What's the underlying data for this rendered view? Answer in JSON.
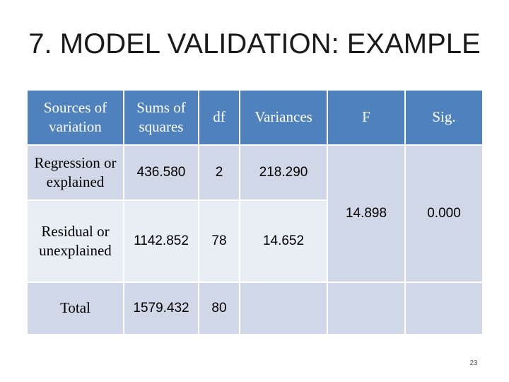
{
  "slide": {
    "title": "7. MODEL VALIDATION: EXAMPLE",
    "page_number": "23"
  },
  "table": {
    "headers": [
      "Sources of variation",
      "Sums of squares",
      "df",
      "Variances",
      "F",
      "Sig."
    ],
    "regression": {
      "source": "Regression or explained",
      "sum_of_squares": "436.580",
      "df": "2",
      "variance": "218.290"
    },
    "residual": {
      "source": "Residual or unexplained",
      "sum_of_squares": "1142.852",
      "df": "78",
      "variance": "14.652"
    },
    "total": {
      "source": "Total",
      "sum_of_squares": "1579.432",
      "df": "80"
    },
    "f_value": "14.898",
    "sig_value": "0.000"
  },
  "colors": {
    "header_bg": "#4f81bd",
    "row_dark_bg": "#d0d8e8",
    "row_light_bg": "#e9edf4"
  }
}
